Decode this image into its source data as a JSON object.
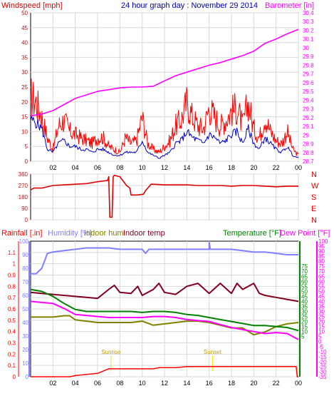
{
  "colors": {
    "wind_red": "#ff0000",
    "wind_blue": "#0000c0",
    "baro": "#ff00ff",
    "dir": "#e00000",
    "rain": "#ff0000",
    "humidity": "#8080ff",
    "indoor_hum": "#808000",
    "indoor_temp": "#800020",
    "temperature": "#008000",
    "dewpoint": "#ff00ff",
    "grid": "#d8d8d8",
    "sun": "#ffe000"
  },
  "chart_data": [
    {
      "id": "wind_baro",
      "type": "line",
      "title": "24 hour graph day : November 29 2014",
      "y_left_label": "Windspeed [mph]",
      "y_right_label": "Barometer [in]",
      "ylim_left": [
        0,
        50
      ],
      "ylim_right": [
        28.7,
        30.4
      ],
      "y_left_ticks": [
        "0",
        "5",
        "10",
        "15",
        "20",
        "25",
        "30",
        "35",
        "40",
        "45",
        "50"
      ],
      "y_right_ticks": [
        "28.7",
        "28.8",
        "28.9",
        "29",
        "29.1",
        "29.2",
        "29.3",
        "29.4",
        "29.5",
        "29.6",
        "29.7",
        "29.8",
        "29.9",
        "30",
        "30.1",
        "30.2",
        "30.3",
        "30.4"
      ],
      "x_hours": [
        0,
        24
      ],
      "x_tick_labels": [
        "02",
        "04",
        "06",
        "08",
        "10",
        "12",
        "14",
        "16",
        "18",
        "20",
        "22",
        "00"
      ],
      "series": [
        {
          "key": "gust",
          "color": "wind_red",
          "x": [
            0,
            0.5,
            1,
            1.5,
            2,
            2.5,
            3,
            3.5,
            4,
            4.5,
            5,
            5.5,
            6,
            6.5,
            7,
            7.5,
            8,
            8.5,
            9,
            9.5,
            10,
            10.5,
            11,
            11.5,
            12,
            12.5,
            13,
            13.5,
            14,
            14.5,
            15,
            15.5,
            16,
            16.5,
            17,
            17.5,
            18,
            18.5,
            19,
            19.5,
            20,
            20.5,
            21,
            21.5,
            22,
            22.5,
            23,
            23.5,
            24
          ],
          "values": [
            22,
            20,
            15,
            8,
            4,
            12,
            14,
            10,
            9,
            8,
            7,
            6,
            8,
            8,
            5,
            4,
            3,
            8,
            6,
            7,
            15,
            6,
            4,
            3,
            5,
            7,
            12,
            14,
            20,
            15,
            12,
            11,
            18,
            15,
            12,
            14,
            17,
            18,
            12,
            20,
            11,
            8,
            15,
            10,
            7,
            6,
            10,
            4,
            2
          ]
        },
        {
          "key": "avg",
          "color": "wind_blue",
          "x": [
            0,
            0.5,
            1,
            1.5,
            2,
            2.5,
            3,
            3.5,
            4,
            4.5,
            5,
            5.5,
            6,
            6.5,
            7,
            7.5,
            8,
            8.5,
            9,
            9.5,
            10,
            10.5,
            11,
            11.5,
            12,
            12.5,
            13,
            13.5,
            14,
            14.5,
            15,
            15.5,
            16,
            16.5,
            17,
            17.5,
            18,
            18.5,
            19,
            19.5,
            20,
            20.5,
            21,
            21.5,
            22,
            22.5,
            23,
            23.5,
            24
          ],
          "values": [
            14,
            13,
            11,
            4,
            3,
            6,
            7,
            5,
            5,
            4,
            4,
            3,
            4,
            4,
            3,
            2,
            2,
            3,
            3,
            3,
            7,
            3,
            2,
            1,
            2,
            3,
            6,
            7,
            10,
            8,
            7,
            6,
            9,
            8,
            6,
            7,
            9,
            10,
            6,
            11,
            6,
            4,
            8,
            6,
            4,
            3,
            5,
            2,
            1
          ]
        },
        {
          "key": "barometer",
          "axis": "right",
          "color": "baro",
          "x": [
            0,
            1,
            2,
            3,
            4,
            5,
            6,
            7,
            8,
            9,
            10,
            11,
            12,
            13,
            14,
            15,
            16,
            17,
            18,
            19,
            20,
            21,
            22,
            23,
            24
          ],
          "values": [
            29.22,
            29.24,
            29.28,
            29.35,
            29.42,
            29.46,
            29.5,
            29.52,
            29.54,
            29.55,
            29.55,
            29.56,
            29.62,
            29.68,
            29.72,
            29.76,
            29.8,
            29.83,
            29.87,
            29.91,
            29.96,
            30.05,
            30.1,
            30.16,
            30.21
          ]
        }
      ]
    },
    {
      "id": "wind_dir",
      "type": "line",
      "ylim": [
        0,
        360
      ],
      "y_ticks": [
        "0",
        "90",
        "180",
        "270",
        "360"
      ],
      "compass": [
        "N",
        "W",
        "S",
        "E",
        "N"
      ],
      "x_hours": [
        0,
        24
      ],
      "series": [
        {
          "key": "direction",
          "color": "dir",
          "x": [
            0,
            0.3,
            1,
            2,
            3,
            4,
            5,
            6,
            6.9,
            7.0,
            7.1,
            7.3,
            7.4,
            7.5,
            8.0,
            8.6,
            8.9,
            9.0,
            9.5,
            10,
            10.1,
            10.3,
            10.8,
            11,
            12,
            13,
            14,
            15,
            16,
            17,
            18,
            19,
            20,
            21,
            22,
            23,
            24
          ],
          "values": [
            235,
            250,
            250,
            270,
            275,
            280,
            285,
            300,
            310,
            340,
            20,
            20,
            340,
            350,
            340,
            270,
            250,
            195,
            195,
            200,
            200,
            230,
            280,
            280,
            275,
            275,
            275,
            270,
            270,
            270,
            265,
            270,
            270,
            265,
            260,
            265,
            265
          ]
        }
      ]
    },
    {
      "id": "rain_hum_temp",
      "type": "line",
      "legend": [
        "Rainfall [.in]",
        "Humidity [%]",
        "Indoor hum",
        "Indoor temp",
        "Temperature [°F]",
        "Dew Point [°F]"
      ],
      "ylim_left": [
        0,
        1.2
      ],
      "ylim_left2": [
        0,
        100
      ],
      "ylim_temp": [
        -35,
        100
      ],
      "y_left_ticks": [
        "0",
        "0.1",
        "0.2",
        "0.3",
        "0.4",
        "0.5",
        "0.6",
        "0.7",
        "0.8",
        "0.9",
        "1",
        "1.1"
      ],
      "y_left2_ticks": [
        "0",
        "10",
        "20",
        "30",
        "40",
        "50",
        "60",
        "70",
        "80",
        "90",
        "100"
      ],
      "y_temp_right_ticks": [
        "-35",
        "-30",
        "-25",
        "-20",
        "-15",
        "-10",
        "-5",
        "0",
        "5",
        "10",
        "15",
        "20",
        "25",
        "30",
        "35",
        "40",
        "45",
        "50",
        "55",
        "60",
        "65",
        "70",
        "75",
        "80",
        "85",
        "90",
        "95",
        "100"
      ],
      "y_right_ticks": [
        "5",
        "10",
        "15",
        "20",
        "25",
        "30",
        "35",
        "40",
        "45",
        "50",
        "55",
        "60",
        "65",
        "70",
        "75"
      ],
      "x_hours": [
        0,
        24
      ],
      "x_tick_labels": [
        "02",
        "04",
        "06",
        "08",
        "10",
        "12",
        "14",
        "16",
        "18",
        "20",
        "22",
        "00"
      ],
      "annotations": [
        {
          "text": "Sunrise",
          "hour": 7.2
        },
        {
          "text": "Sunset",
          "hour": 16.3
        }
      ],
      "series": [
        {
          "key": "rain",
          "axis": "left",
          "color": "rain",
          "x": [
            0,
            3.5,
            4,
            5,
            6,
            6.5,
            7,
            7.5,
            10,
            11,
            11.5,
            13,
            14,
            23.8,
            23.9,
            24
          ],
          "values": [
            0,
            0,
            0.01,
            0.02,
            0.03,
            0.05,
            0.07,
            0.07,
            0.07,
            0.07,
            0.08,
            0.08,
            0.09,
            0.09,
            0.0,
            0.0
          ]
        },
        {
          "key": "humidity",
          "axis": "left2",
          "color": "humidity",
          "x": [
            0,
            0.5,
            1,
            1.5,
            2,
            3,
            4,
            5,
            6,
            7,
            8,
            9,
            10,
            10.3,
            10.6,
            11,
            12,
            13,
            14,
            15,
            16,
            16.01,
            16.1,
            17,
            18,
            19,
            20,
            21,
            22,
            23,
            24
          ],
          "values": [
            76,
            76,
            80,
            91,
            92,
            93,
            94,
            95,
            95,
            95,
            94,
            94,
            94,
            91,
            94,
            94,
            94,
            94,
            94,
            94,
            94,
            99,
            94,
            94,
            94,
            93,
            92,
            92,
            91,
            90,
            90
          ]
        },
        {
          "key": "indoor_hum",
          "axis": "left2",
          "color": "indoor_hum",
          "x": [
            0,
            1,
            2,
            3,
            3.5,
            4,
            5,
            6,
            7,
            8,
            9,
            10,
            11,
            12,
            13,
            14,
            15,
            16,
            17,
            18,
            19,
            20,
            21,
            22,
            23,
            24
          ],
          "values": [
            44,
            44,
            44,
            45,
            45,
            42,
            41,
            40,
            40,
            40,
            40,
            41,
            38,
            39,
            40,
            41,
            41,
            40,
            38,
            36,
            36,
            31,
            33,
            37,
            39,
            40
          ]
        },
        {
          "key": "indoor_temp",
          "axis": "temp",
          "color": "indoor_temp",
          "x": [
            0,
            1,
            2,
            3,
            4,
            5,
            6,
            7,
            7.5,
            8,
            9,
            9.6,
            10,
            11,
            11.5,
            12,
            13,
            14,
            15,
            16,
            17,
            18,
            18.5,
            19,
            20,
            20.5,
            21,
            22,
            23,
            24
          ],
          "values": [
            49,
            48,
            47,
            46,
            45,
            44,
            43,
            52,
            56,
            49,
            48,
            55,
            46,
            52,
            58,
            49,
            47,
            55,
            58,
            48,
            58,
            48,
            58,
            52,
            58,
            48,
            46,
            44,
            42,
            40
          ]
        },
        {
          "key": "temperature",
          "axis": "temp",
          "color": "temperature",
          "x": [
            0,
            1,
            2,
            3,
            4,
            5,
            6,
            7,
            8,
            9,
            10,
            11,
            12,
            13,
            14,
            15,
            16,
            17,
            18,
            19,
            20,
            21,
            22,
            23,
            24
          ],
          "values": [
            52,
            50,
            45,
            38,
            32,
            30,
            30,
            30,
            30,
            30,
            29,
            30,
            30,
            29,
            27,
            26,
            24,
            22,
            20,
            18,
            16,
            16,
            15,
            14,
            11
          ]
        },
        {
          "key": "dewpoint",
          "axis": "temp",
          "color": "dewpoint",
          "x": [
            0,
            1,
            2,
            3,
            4,
            5,
            6,
            7,
            8,
            9,
            10,
            11,
            12,
            13,
            14,
            15,
            16,
            17,
            18,
            19,
            20,
            21,
            22,
            23,
            24
          ],
          "values": [
            40,
            39,
            38,
            33,
            27,
            26,
            25,
            24,
            24,
            24,
            24,
            25,
            25,
            24,
            22,
            21,
            20,
            17,
            14,
            12,
            10,
            8,
            9,
            8,
            2
          ]
        }
      ]
    }
  ]
}
